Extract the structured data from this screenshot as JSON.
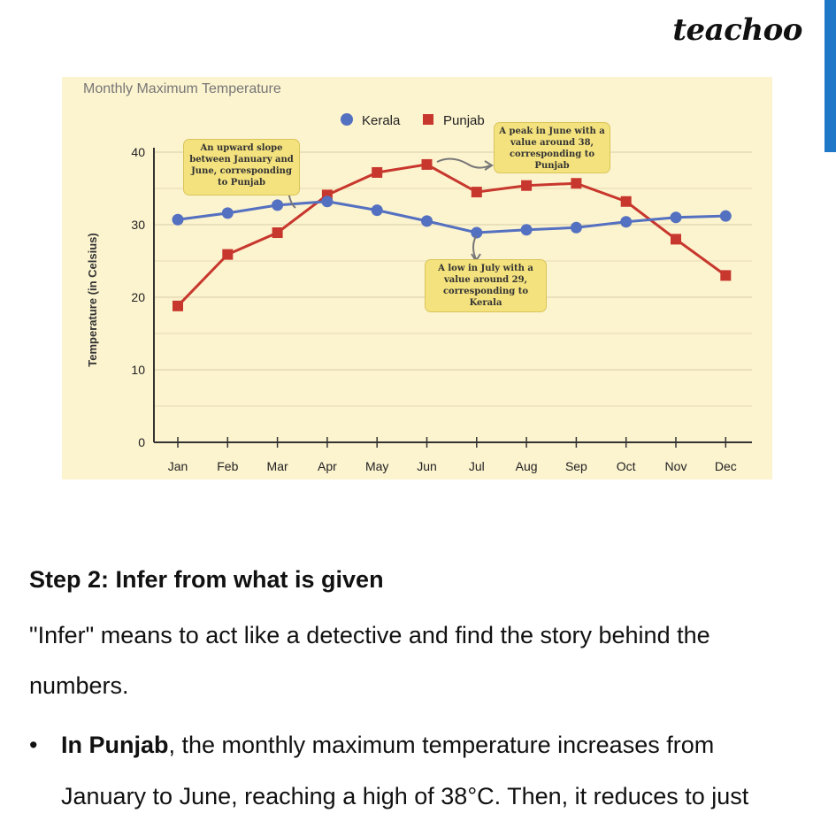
{
  "brand": {
    "logo": "teachoo",
    "accent": "#1f77c8"
  },
  "chart_data": {
    "type": "line",
    "title": "Monthly Maximum Temperature",
    "xlabel": "",
    "ylabel": "Temperature (in Celsius)",
    "categories": [
      "Jan",
      "Feb",
      "Mar",
      "Apr",
      "May",
      "Jun",
      "Jul",
      "Aug",
      "Sep",
      "Oct",
      "Nov",
      "Dec"
    ],
    "ylim": [
      0,
      40
    ],
    "yticks": [
      0,
      10,
      20,
      30,
      40
    ],
    "grid": true,
    "legend": "top",
    "series": [
      {
        "name": "Kerala",
        "color": "#5470c0",
        "marker": "circle",
        "values": [
          30.7,
          31.6,
          32.7,
          33.2,
          32.0,
          30.5,
          28.9,
          29.3,
          29.6,
          30.4,
          31.0,
          31.2
        ]
      },
      {
        "name": "Punjab",
        "color": "#c8372d",
        "marker": "square",
        "values": [
          18.8,
          25.9,
          28.9,
          34.1,
          37.2,
          38.3,
          34.5,
          35.4,
          35.7,
          33.2,
          28.0,
          23.0
        ]
      }
    ],
    "annotations": [
      "An upward slope between January and June, corresponding to Punjab",
      "A peak in June with a value around 38, corresponding to Punjab",
      "A low in July with a value around 29, corresponding to Kerala"
    ]
  },
  "content": {
    "heading": "Step 2: Infer from what is given",
    "para1_line1": "\"Infer\" means to act like a detective and find the story behind the",
    "para1_line2": "numbers.",
    "bullet": "•",
    "bullet_bold": "In Punjab",
    "bullet_line1_rest": ", the monthly maximum temperature increases from",
    "bullet_line2": "January to June, reaching a high of 38°C. Then, it reduces to just"
  }
}
